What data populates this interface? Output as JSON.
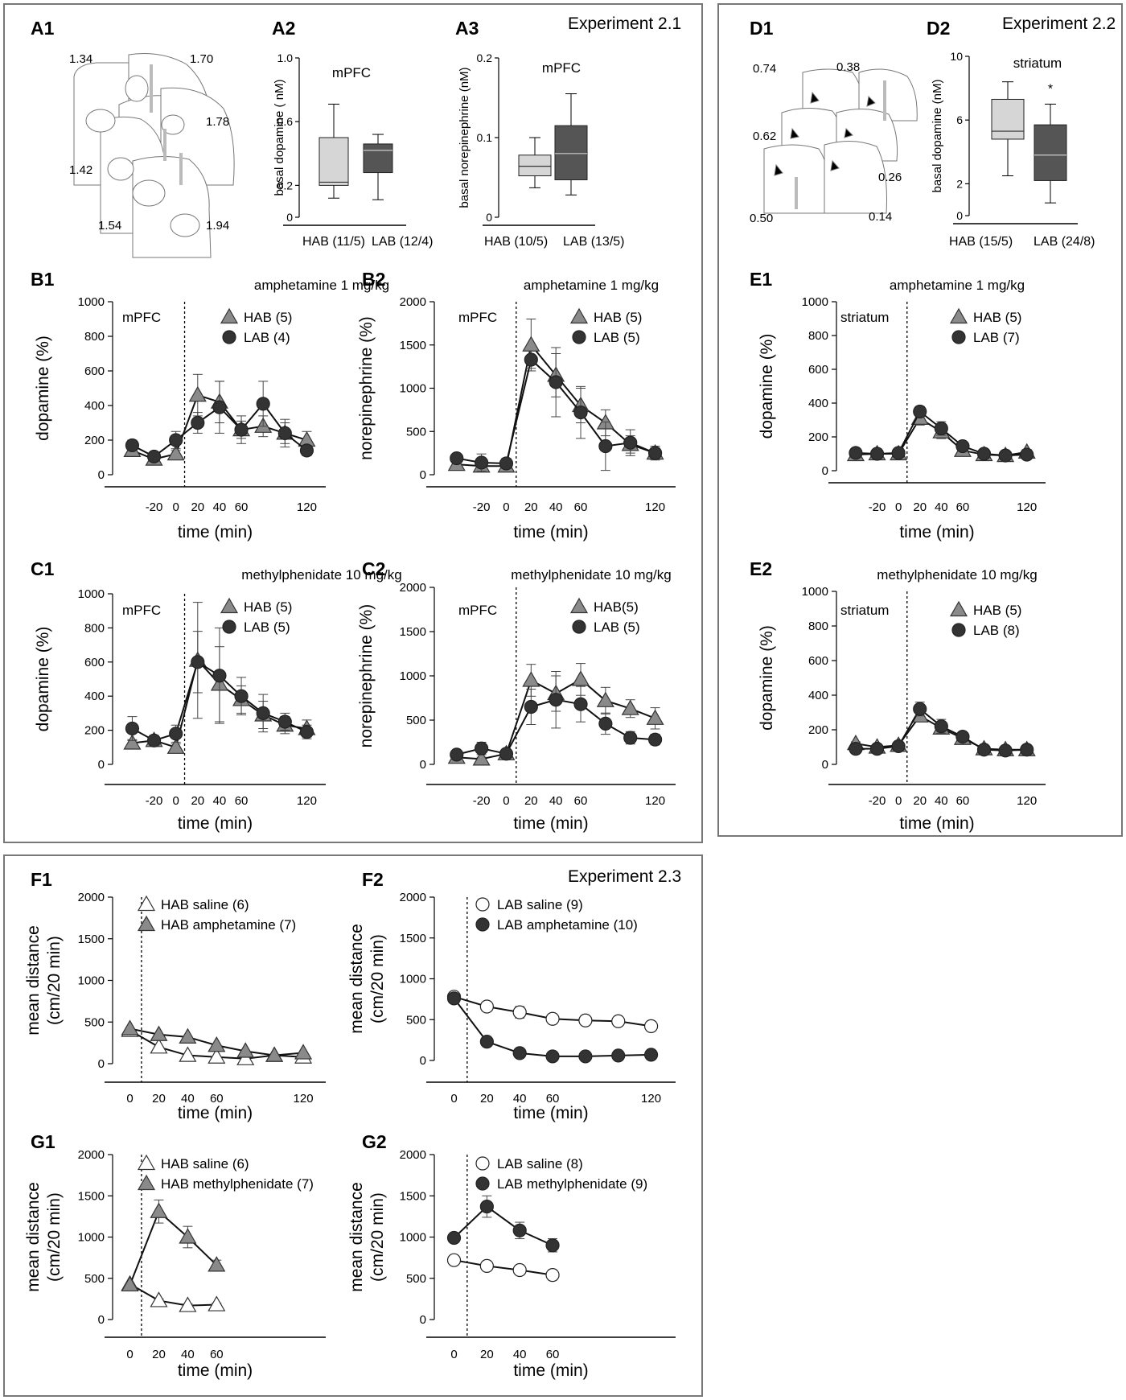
{
  "experiments": {
    "exp21": "Experiment 2.1",
    "exp22": "Experiment 2.2",
    "exp23": "Experiment 2.3"
  },
  "panel_labels": {
    "A1": "A1",
    "A2": "A2",
    "A3": "A3",
    "D1": "D1",
    "D2": "D2",
    "B1": "B1",
    "B2": "B2",
    "E1": "E1",
    "C1": "C1",
    "C2": "C2",
    "E2": "E2",
    "F1": "F1",
    "F2": "F2",
    "G1": "G1",
    "G2": "G2"
  },
  "atlas_a1": [
    "1.34",
    "1.70",
    "1.78",
    "1.42",
    "1.54",
    "1.94"
  ],
  "atlas_d1": [
    "0.74",
    "0.38",
    "0.62",
    "0.26",
    "0.50",
    "0.14"
  ],
  "colors": {
    "hab_box": "#d6d6d6",
    "lab_box": "#555555",
    "hab_marker": "#8a8a8a",
    "lab_marker": "#333333",
    "frame": "#777777"
  },
  "chart_data": [
    {
      "id": "A2",
      "type": "box",
      "title": "mPFC",
      "ylabel": "basal dopamine ( nM)",
      "ylim": [
        0,
        1.0
      ],
      "yticks": [
        "0",
        "0.2",
        "0.6",
        "1.0"
      ],
      "categories": [
        "HAB (11/5)",
        "LAB (12/4)"
      ],
      "boxes": [
        {
          "min": 0.12,
          "q1": 0.2,
          "median": 0.22,
          "q3": 0.5,
          "max": 0.71
        },
        {
          "min": 0.11,
          "q1": 0.28,
          "median": 0.42,
          "q3": 0.46,
          "max": 0.52
        }
      ]
    },
    {
      "id": "A3",
      "type": "box",
      "title": "mPFC",
      "ylabel": "basal norepinephrine (nM)",
      "ylim": [
        0,
        0.2
      ],
      "yticks": [
        "0",
        "0.1",
        "0.2"
      ],
      "categories": [
        "HAB (10/5)",
        "LAB (13/5)"
      ],
      "boxes": [
        {
          "min": 0.037,
          "q1": 0.052,
          "median": 0.064,
          "q3": 0.078,
          "max": 0.1
        },
        {
          "min": 0.028,
          "q1": 0.047,
          "median": 0.08,
          "q3": 0.115,
          "max": 0.155
        }
      ]
    },
    {
      "id": "D2",
      "type": "box",
      "title": "striatum",
      "ylabel": "basal dopamine (nM)",
      "ylim": [
        0,
        10
      ],
      "yticks": [
        "0",
        "2",
        "6",
        "10"
      ],
      "categories": [
        "HAB (15/5)",
        "LAB (24/8)"
      ],
      "significance": "*",
      "boxes": [
        {
          "min": 2.5,
          "q1": 4.8,
          "median": 5.3,
          "q3": 7.3,
          "max": 8.4
        },
        {
          "min": 0.8,
          "q1": 2.2,
          "median": 3.8,
          "q3": 5.7,
          "max": 7.0
        }
      ]
    },
    {
      "id": "B1",
      "type": "line",
      "title": "amphetamine 1 mg/kg",
      "region": "mPFC",
      "xlabel": "time (min)",
      "ylabel": "dopamine (%)",
      "ylim": [
        0,
        1000
      ],
      "yticks": [
        "0",
        "200",
        "400",
        "600",
        "800",
        "1000"
      ],
      "xticks": [
        "-20",
        "0",
        "20",
        "40",
        "60",
        "120"
      ],
      "x": [
        -40,
        -20,
        0,
        20,
        40,
        60,
        80,
        100,
        120
      ],
      "series": [
        {
          "name": "HAB (5)",
          "marker": "triangle",
          "values": [
            140,
            90,
            120,
            460,
            420,
            260,
            280,
            240,
            200
          ],
          "errors": [
            20,
            20,
            20,
            120,
            120,
            50,
            60,
            60,
            50
          ]
        },
        {
          "name": "LAB (4)",
          "marker": "circle",
          "values": [
            170,
            105,
            200,
            300,
            390,
            260,
            410,
            240,
            140
          ],
          "errors": [
            30,
            20,
            50,
            60,
            150,
            80,
            130,
            80,
            30
          ]
        }
      ]
    },
    {
      "id": "B2",
      "type": "line",
      "title": "amphetamine 1 mg/kg",
      "region": "mPFC",
      "xlabel": "time (min)",
      "ylabel": "norepinephrine (%)",
      "ylim": [
        0,
        2000
      ],
      "yticks": [
        "0",
        "500",
        "1000",
        "1500",
        "2000"
      ],
      "xticks": [
        "-20",
        "0",
        "20",
        "40",
        "60",
        "120"
      ],
      "x": [
        -40,
        -20,
        0,
        20,
        40,
        60,
        80,
        100,
        120
      ],
      "series": [
        {
          "name": "HAB (5)",
          "marker": "triangle",
          "values": [
            120,
            100,
            100,
            1500,
            1150,
            800,
            600,
            350,
            250
          ],
          "errors": [
            30,
            30,
            30,
            300,
            250,
            200,
            150,
            100,
            60
          ]
        },
        {
          "name": "LAB (5)",
          "marker": "circle",
          "values": [
            190,
            140,
            130,
            1330,
            1070,
            720,
            330,
            370,
            250
          ],
          "errors": [
            50,
            100,
            60,
            100,
            400,
            300,
            280,
            150,
            80
          ]
        }
      ]
    },
    {
      "id": "E1",
      "type": "line",
      "title": "amphetamine 1 mg/kg",
      "region": "striatum",
      "xlabel": "time (min)",
      "ylabel": "dopamine (%)",
      "ylim": [
        0,
        1000
      ],
      "yticks": [
        "0",
        "200",
        "400",
        "600",
        "800",
        "1000"
      ],
      "xticks": [
        "-20",
        "0",
        "20",
        "40",
        "60",
        "120"
      ],
      "x": [
        -40,
        -20,
        0,
        20,
        40,
        60,
        80,
        100,
        120
      ],
      "series": [
        {
          "name": "HAB (5)",
          "marker": "triangle",
          "values": [
            95,
            100,
            100,
            310,
            230,
            120,
            95,
            90,
            110
          ],
          "errors": [
            10,
            10,
            10,
            40,
            40,
            20,
            15,
            10,
            15
          ]
        },
        {
          "name": "LAB (7)",
          "marker": "circle",
          "values": [
            105,
            100,
            105,
            350,
            250,
            145,
            100,
            90,
            95
          ],
          "errors": [
            10,
            10,
            10,
            30,
            40,
            20,
            15,
            10,
            10
          ]
        }
      ]
    },
    {
      "id": "C1",
      "type": "line",
      "title": "methylphenidate 10 mg/kg",
      "region": "mPFC",
      "xlabel": "time (min)",
      "ylabel": "dopamine (%)",
      "ylim": [
        0,
        1000
      ],
      "yticks": [
        "0",
        "200",
        "400",
        "600",
        "800",
        "1000"
      ],
      "xticks": [
        "-20",
        "0",
        "20",
        "40",
        "60",
        "120"
      ],
      "x": [
        -40,
        -20,
        0,
        20,
        40,
        60,
        80,
        100,
        120
      ],
      "series": [
        {
          "name": "HAB (5)",
          "marker": "triangle",
          "values": [
            125,
            140,
            100,
            610,
            470,
            380,
            290,
            230,
            210
          ],
          "errors": [
            20,
            20,
            20,
            340,
            220,
            80,
            80,
            50,
            50
          ]
        },
        {
          "name": "LAB (5)",
          "marker": "circle",
          "values": [
            210,
            140,
            180,
            600,
            520,
            400,
            300,
            250,
            190
          ],
          "errors": [
            70,
            30,
            50,
            180,
            280,
            110,
            110,
            50,
            40
          ]
        }
      ]
    },
    {
      "id": "C2",
      "type": "line",
      "title": "methylphenidate 10 mg/kg",
      "region": "mPFC",
      "xlabel": "time (min)",
      "ylabel": "norepinephrine (%)",
      "ylim": [
        0,
        2000
      ],
      "yticks": [
        "0",
        "500",
        "1000",
        "1500",
        "2000"
      ],
      "xticks": [
        "-20",
        "0",
        "20",
        "40",
        "60",
        "120"
      ],
      "x": [
        -40,
        -20,
        0,
        20,
        40,
        60,
        80,
        100,
        120
      ],
      "series": [
        {
          "name": "HAB(5)",
          "marker": "triangle",
          "values": [
            80,
            60,
            120,
            950,
            800,
            960,
            720,
            630,
            520
          ],
          "errors": [
            20,
            20,
            20,
            180,
            200,
            180,
            150,
            100,
            120
          ]
        },
        {
          "name": "LAB (5)",
          "marker": "circle",
          "values": [
            110,
            180,
            120,
            650,
            730,
            680,
            460,
            300,
            280
          ],
          "errors": [
            20,
            70,
            20,
            200,
            320,
            200,
            120,
            70,
            60
          ]
        }
      ]
    },
    {
      "id": "E2",
      "type": "line",
      "title": "methylphenidate 10 mg/kg",
      "region": "striatum",
      "xlabel": "time (min)",
      "ylabel": "dopamine (%)",
      "ylim": [
        0,
        1000
      ],
      "yticks": [
        "0",
        "200",
        "400",
        "600",
        "800",
        "1000"
      ],
      "xticks": [
        "-20",
        "0",
        "20",
        "40",
        "60",
        "120"
      ],
      "x": [
        -40,
        -20,
        0,
        20,
        40,
        60,
        80,
        100,
        120
      ],
      "series": [
        {
          "name": "HAB (5)",
          "marker": "triangle",
          "values": [
            120,
            100,
            110,
            280,
            210,
            150,
            90,
            85,
            85
          ],
          "errors": [
            10,
            10,
            10,
            30,
            30,
            20,
            10,
            10,
            10
          ]
        },
        {
          "name": "LAB (8)",
          "marker": "circle",
          "values": [
            90,
            90,
            105,
            320,
            220,
            160,
            85,
            80,
            85
          ],
          "errors": [
            10,
            10,
            10,
            40,
            40,
            25,
            10,
            10,
            10
          ]
        }
      ]
    },
    {
      "id": "F1",
      "type": "line",
      "xlabel": "time (min)",
      "ylabel": [
        "mean distance",
        "(cm/20 min)"
      ],
      "ylim": [
        0,
        2000
      ],
      "yticks": [
        "0",
        "500",
        "1000",
        "1500",
        "2000"
      ],
      "xticks": [
        "0",
        "20",
        "40",
        "60",
        "120"
      ],
      "x": [
        0,
        20,
        40,
        60,
        80,
        100,
        120
      ],
      "series": [
        {
          "name": "HAB saline (6)",
          "marker": "triangle-open",
          "values": [
            400,
            200,
            100,
            80,
            60,
            100,
            80
          ],
          "errors": [
            0,
            0,
            0,
            0,
            0,
            0,
            0
          ]
        },
        {
          "name": "HAB amphetamine (7)",
          "marker": "triangle",
          "values": [
            420,
            350,
            320,
            220,
            150,
            100,
            130
          ],
          "errors": [
            0,
            0,
            0,
            0,
            0,
            0,
            0
          ]
        }
      ]
    },
    {
      "id": "F2",
      "type": "line",
      "xlabel": "time (min)",
      "ylabel": [
        "mean distance",
        "(cm/20 min)"
      ],
      "ylim": [
        0,
        2000
      ],
      "yticks": [
        "0",
        "500",
        "1000",
        "1500",
        "2000"
      ],
      "xticks": [
        "0",
        "20",
        "40",
        "60",
        "120"
      ],
      "x": [
        0,
        20,
        40,
        60,
        80,
        100,
        120
      ],
      "series": [
        {
          "name": "LAB saline (9)",
          "marker": "circle-open",
          "values": [
            780,
            660,
            590,
            510,
            490,
            480,
            420
          ],
          "errors": [
            0,
            30,
            70,
            40,
            50,
            40,
            30
          ]
        },
        {
          "name": "LAB amphetamine (10)",
          "marker": "circle",
          "values": [
            760,
            230,
            90,
            50,
            50,
            60,
            70
          ],
          "errors": [
            0,
            20,
            20,
            10,
            10,
            10,
            10
          ]
        }
      ]
    },
    {
      "id": "G1",
      "type": "line",
      "xlabel": "time (min)",
      "ylabel": [
        "mean distance",
        "(cm/20 min)"
      ],
      "ylim": [
        0,
        2000
      ],
      "yticks": [
        "0",
        "500",
        "1000",
        "1500",
        "2000"
      ],
      "xticks": [
        "0",
        "20",
        "40",
        "60"
      ],
      "x": [
        0,
        20,
        40,
        60
      ],
      "series": [
        {
          "name": "HAB saline (6)",
          "marker": "triangle-open",
          "values": [
            430,
            230,
            170,
            180
          ],
          "errors": [
            0,
            20,
            20,
            20
          ]
        },
        {
          "name": "HAB methylphenidate (7)",
          "marker": "triangle",
          "values": [
            420,
            1310,
            1000,
            660
          ],
          "errors": [
            0,
            140,
            130,
            60
          ]
        }
      ]
    },
    {
      "id": "G2",
      "type": "line",
      "xlabel": "time (min)",
      "ylabel": [
        "mean distance",
        "(cm/20 min)"
      ],
      "ylim": [
        0,
        2000
      ],
      "yticks": [
        "0",
        "500",
        "1000",
        "1500",
        "2000"
      ],
      "xticks": [
        "0",
        "20",
        "40",
        "60"
      ],
      "x": [
        0,
        20,
        40,
        60
      ],
      "series": [
        {
          "name": "LAB saline (8)",
          "marker": "circle-open",
          "values": [
            720,
            650,
            600,
            540
          ],
          "errors": [
            0,
            30,
            50,
            60
          ]
        },
        {
          "name": "LAB methylphenidate (9)",
          "marker": "circle",
          "values": [
            990,
            1370,
            1080,
            900
          ],
          "errors": [
            0,
            130,
            100,
            80
          ]
        }
      ]
    }
  ]
}
